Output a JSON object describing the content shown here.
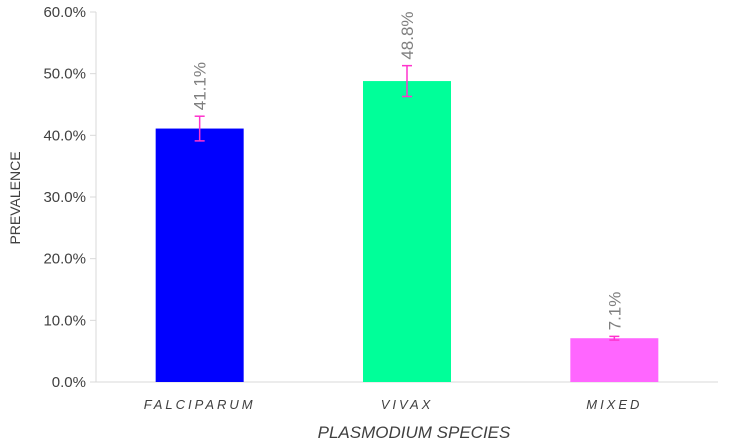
{
  "chart_data": {
    "type": "bar",
    "title": "",
    "xlabel": "PLASMODIUM SPECIES",
    "ylabel": "PREVALENCE",
    "categories": [
      "FALCIPARUM",
      "VIVAX",
      "MIXED"
    ],
    "values": [
      41.1,
      48.8,
      7.1
    ],
    "value_labels": [
      "41.1%",
      "48.8%",
      "7.1%"
    ],
    "error_low": [
      39.1,
      46.3,
      6.8
    ],
    "error_high": [
      43.1,
      51.3,
      7.4
    ],
    "colors": [
      "#0000ff",
      "#00ff99",
      "#ff66ff"
    ],
    "error_bar_color": "#ff33cc",
    "ylim": [
      0,
      60
    ],
    "yticks": [
      0,
      10,
      20,
      30,
      40,
      50,
      60
    ],
    "ytick_labels": [
      "0.0%",
      "10.0%",
      "20.0%",
      "30.0%",
      "40.0%",
      "50.0%",
      "60.0%"
    ],
    "grid": false,
    "legend": "none"
  }
}
